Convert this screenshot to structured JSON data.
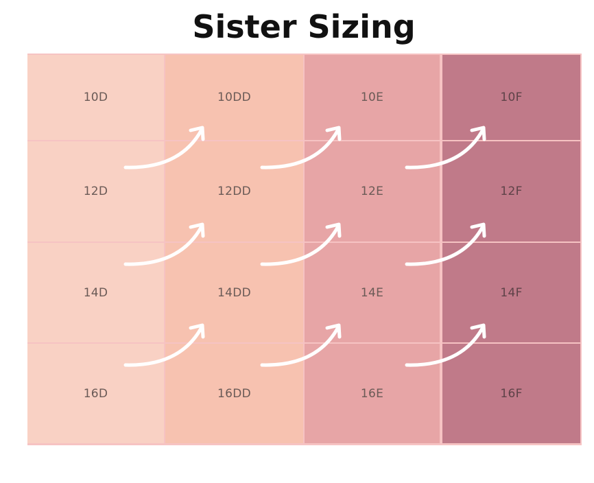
{
  "title": "Sister Sizing",
  "columns": [
    {
      "cup": "D",
      "color": "#f9d1c4",
      "text_color": "#6a5a56"
    },
    {
      "cup": "DD",
      "color": "#f7c2b0",
      "text_color": "#6a5a56"
    },
    {
      "cup": "E",
      "color": "#e7a5a6",
      "text_color": "#6a5a56"
    },
    {
      "cup": "F",
      "color": "#c07a89",
      "text_color": "#5e4248"
    }
  ],
  "rows": [
    [
      "10D",
      "10DD",
      "10E",
      "10F"
    ],
    [
      "12D",
      "12DD",
      "12E",
      "12F"
    ],
    [
      "14D",
      "14DD",
      "14E",
      "14F"
    ],
    [
      "16D",
      "16DD",
      "16E",
      "16F"
    ]
  ],
  "colors": {
    "border": "#f6c3c3",
    "arrow": "#ffffff"
  }
}
